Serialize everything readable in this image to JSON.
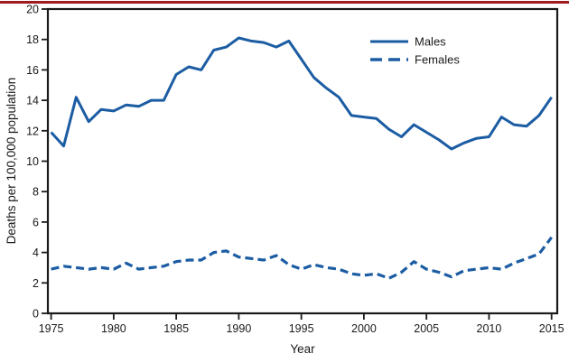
{
  "figure": {
    "top_rule_color": "#9e1b1e",
    "background": "#ffffff",
    "axis_color": "#1a1a1a"
  },
  "chart_data": {
    "type": "line",
    "title": "",
    "xlabel": "Year",
    "ylabel": "Deaths per 100,000 population",
    "xlim": [
      1975,
      2015
    ],
    "ylim": [
      0,
      20
    ],
    "xticks": [
      1975,
      1980,
      1985,
      1990,
      1995,
      2000,
      2005,
      2010,
      2015
    ],
    "yticks": [
      0,
      2,
      4,
      6,
      8,
      10,
      12,
      14,
      16,
      18,
      20
    ],
    "grid": false,
    "legend_position": "upper-center-inside",
    "x": [
      1975,
      1976,
      1977,
      1978,
      1979,
      1980,
      1981,
      1982,
      1983,
      1984,
      1985,
      1986,
      1987,
      1988,
      1989,
      1990,
      1991,
      1992,
      1993,
      1994,
      1995,
      1996,
      1997,
      1998,
      1999,
      2000,
      2001,
      2002,
      2003,
      2004,
      2005,
      2006,
      2007,
      2008,
      2009,
      2010,
      2011,
      2012,
      2013,
      2014,
      2015
    ],
    "series": [
      {
        "name": "Males",
        "style": "solid",
        "color": "#1b5ca3",
        "values": [
          11.9,
          11.0,
          14.2,
          12.6,
          13.4,
          13.3,
          13.7,
          13.6,
          14.0,
          14.0,
          15.7,
          16.2,
          16.0,
          17.3,
          17.5,
          18.1,
          17.9,
          17.8,
          17.5,
          17.9,
          16.7,
          15.5,
          14.8,
          14.2,
          13.0,
          12.9,
          12.8,
          12.1,
          11.6,
          12.4,
          11.9,
          11.4,
          10.8,
          11.2,
          11.5,
          11.6,
          12.9,
          12.4,
          12.3,
          13.0,
          14.2
        ]
      },
      {
        "name": "Females",
        "style": "dashed",
        "color": "#1b5ca3",
        "values": [
          2.9,
          3.1,
          3.0,
          2.9,
          3.0,
          2.9,
          3.3,
          2.9,
          3.0,
          3.1,
          3.4,
          3.5,
          3.5,
          4.0,
          4.1,
          3.7,
          3.6,
          3.5,
          3.8,
          3.2,
          2.9,
          3.2,
          3.0,
          2.9,
          2.6,
          2.5,
          2.6,
          2.3,
          2.7,
          3.4,
          2.9,
          2.7,
          2.4,
          2.8,
          2.9,
          3.0,
          2.9,
          3.3,
          3.6,
          3.9,
          5.0
        ]
      }
    ]
  }
}
